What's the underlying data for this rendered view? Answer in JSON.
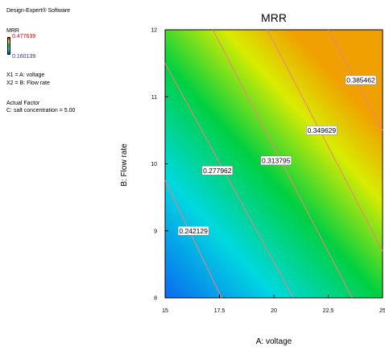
{
  "software": "Design-Expert® Software",
  "response": {
    "name": "MRR",
    "max": "0.477639",
    "min": "0.160139"
  },
  "factors": {
    "x1": "X1 = A: voltage",
    "x2": "X2 = B: Flow rate"
  },
  "actual_factor": {
    "title": "Actual Factor",
    "value": "C: salt concentration = 5.00"
  },
  "chart_data": {
    "type": "contour",
    "title": "MRR",
    "xlabel": "A: voltage",
    "ylabel": "B: Flow rate",
    "xlim": [
      15,
      25
    ],
    "ylim": [
      8,
      12
    ],
    "x_ticks": [
      "15",
      "17.5",
      "20",
      "22.5",
      "25"
    ],
    "y_ticks": [
      "8",
      "9",
      "10",
      "11",
      "12"
    ],
    "color_scale": {
      "low": "#0a6af0",
      "mid": "#00d040",
      "high": "#f0a000"
    },
    "contours": [
      {
        "label": "0.242129",
        "line": [
          [
            15,
            9.75
          ],
          [
            17.6,
            8
          ]
        ],
        "label_at": [
          16.3,
          9.0
        ]
      },
      {
        "label": "0.277962",
        "line": [
          [
            15,
            11.5
          ],
          [
            20.9,
            8
          ]
        ],
        "label_at": [
          17.4,
          9.9
        ]
      },
      {
        "label": "0.313795",
        "line": [
          [
            17.2,
            12
          ],
          [
            23.6,
            8
          ]
        ],
        "label_at": [
          20.1,
          10.05
        ]
      },
      {
        "label": "0.349629",
        "line": [
          [
            19.7,
            12
          ],
          [
            25,
            8.7
          ]
        ],
        "label_at": [
          22.2,
          10.5
        ]
      },
      {
        "label": "0.385462",
        "line": [
          [
            22.5,
            12
          ],
          [
            25,
            10.5
          ]
        ],
        "label_at": [
          24.0,
          11.25
        ]
      }
    ]
  }
}
